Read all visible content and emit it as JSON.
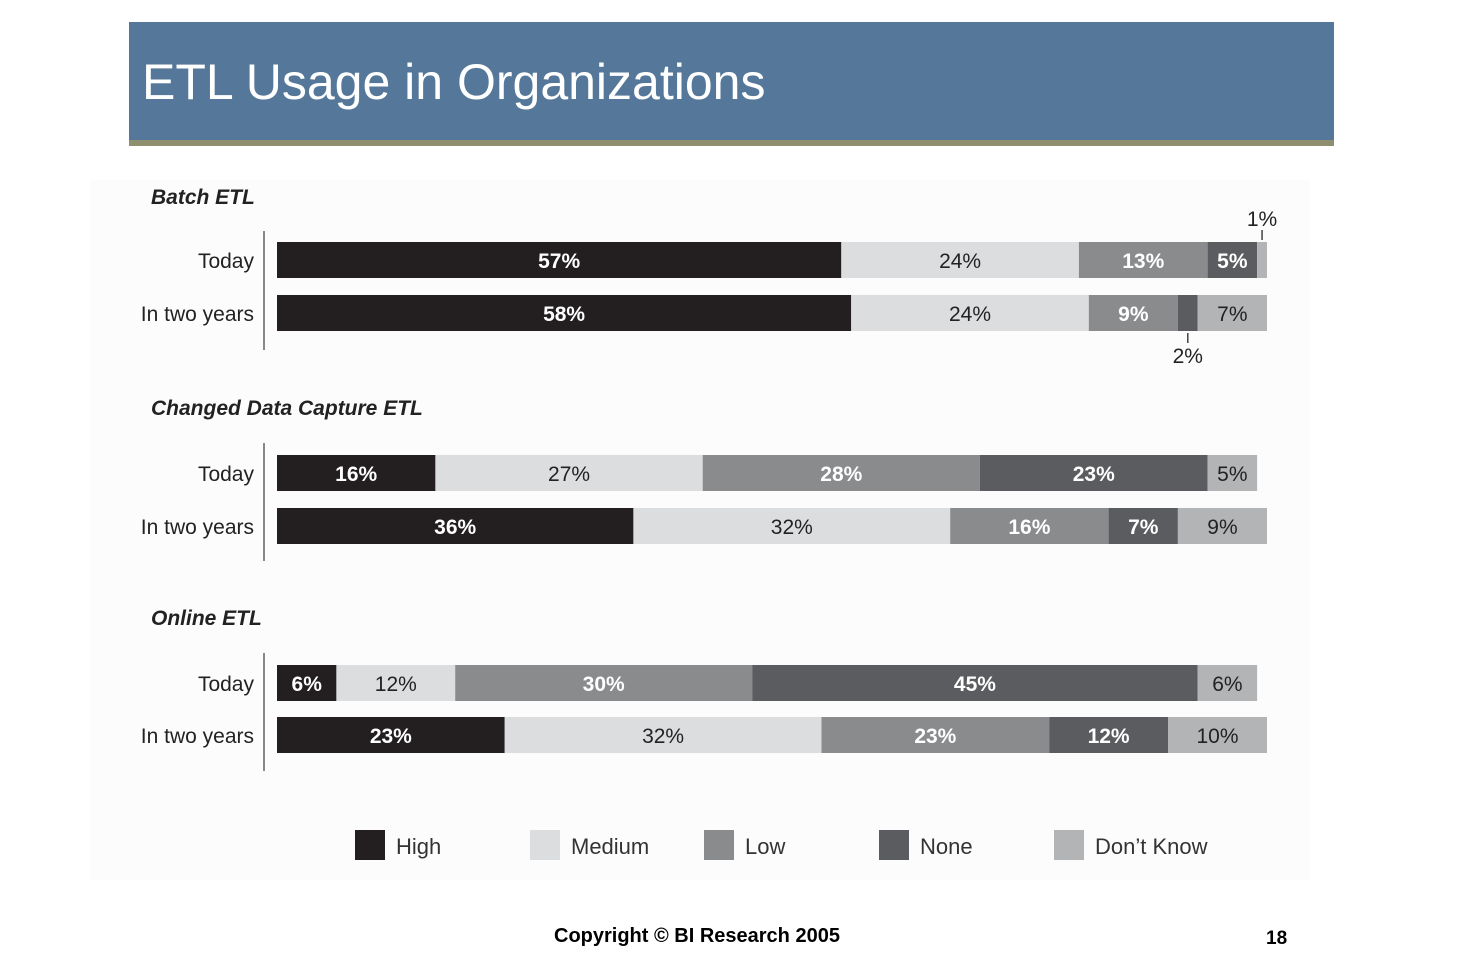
{
  "slide": {
    "title": "ETL Usage in Organizations",
    "copyright": "Copyright © BI Research 2005",
    "page_number": "18"
  },
  "colors": {
    "title_bar": "#55789a",
    "title_rule": "#8f8f6f",
    "High": "#231f20",
    "Medium": "#dcdddf",
    "Low": "#8a8b8d",
    "None": "#5b5c5f",
    "Don't Know": "#b3b4b6"
  },
  "chart_data": {
    "type": "bar",
    "orientation": "horizontal",
    "stacked": true,
    "percent": true,
    "legend_position": "bottom",
    "categories_order": [
      "High",
      "Medium",
      "Low",
      "None",
      "Don't Know"
    ],
    "legend": [
      {
        "key": "High",
        "label": "High"
      },
      {
        "key": "Medium",
        "label": "Medium"
      },
      {
        "key": "Low",
        "label": "Low"
      },
      {
        "key": "None",
        "label": "None"
      },
      {
        "key": "Don't Know",
        "label": "Don’t Know"
      }
    ],
    "groups": [
      {
        "title": "Batch ETL",
        "rows": [
          {
            "label": "Today",
            "values": [
              57,
              24,
              13,
              5,
              1
            ],
            "labels": [
              "57%",
              "24%",
              "13%",
              "5%",
              "1%"
            ]
          },
          {
            "label": "In two years",
            "values": [
              58,
              24,
              9,
              2,
              7
            ],
            "labels": [
              "58%",
              "24%",
              "9%",
              "2%",
              "7%"
            ]
          }
        ]
      },
      {
        "title": "Changed Data Capture ETL",
        "rows": [
          {
            "label": "Today",
            "values": [
              16,
              27,
              28,
              23,
              5
            ],
            "labels": [
              "16%",
              "27%",
              "28%",
              "23%",
              "5%"
            ]
          },
          {
            "label": "In two years",
            "values": [
              36,
              32,
              16,
              7,
              9
            ],
            "labels": [
              "36%",
              "32%",
              "16%",
              "7%",
              "9%"
            ]
          }
        ]
      },
      {
        "title": "Online ETL",
        "rows": [
          {
            "label": "Today",
            "values": [
              6,
              12,
              30,
              45,
              6
            ],
            "labels": [
              "6%",
              "12%",
              "30%",
              "45%",
              "6%"
            ]
          },
          {
            "label": "In two years",
            "values": [
              23,
              32,
              23,
              12,
              10
            ],
            "labels": [
              "23%",
              "32%",
              "23%",
              "12%",
              "10%"
            ]
          }
        ]
      }
    ]
  }
}
